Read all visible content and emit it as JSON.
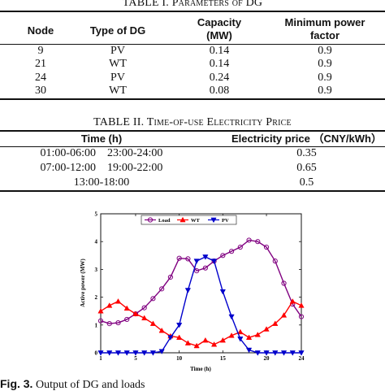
{
  "table1": {
    "title": "TABLE I. Parameters of DG",
    "headers": {
      "node": "Node",
      "type": "Type of DG",
      "capacity_l1": "Capacity",
      "capacity_l2": "(MW)",
      "mpf_l1": "Minimum power",
      "mpf_l2": "factor"
    },
    "rows": [
      {
        "node": "9",
        "type": "PV",
        "capacity": "0.14",
        "mpf": "0.9"
      },
      {
        "node": "21",
        "type": "WT",
        "capacity": "0.14",
        "mpf": "0.9"
      },
      {
        "node": "24",
        "type": "PV",
        "capacity": "0.24",
        "mpf": "0.9"
      },
      {
        "node": "30",
        "type": "WT",
        "capacity": "0.08",
        "mpf": "0.9"
      }
    ]
  },
  "table2": {
    "title": "TABLE II. Time-of-use Electricity Price",
    "headers": {
      "time": "Time (h)",
      "price": "Electricity price （CNY/kWh）"
    },
    "rows": [
      {
        "time": "01:00-06:00    23:00-24:00",
        "price": "0.35"
      },
      {
        "time": "07:00-12:00    19:00-22:00",
        "price": "0.65"
      },
      {
        "time": "13:00-18:00",
        "price": "0.5"
      }
    ]
  },
  "chart_data": {
    "type": "line",
    "xlabel": "Time (h)",
    "ylabel": "Active power (MW)",
    "xlim": [
      1,
      24
    ],
    "ylim": [
      0,
      5
    ],
    "xticks": [
      1,
      5,
      10,
      15,
      20,
      24
    ],
    "yticks": [
      0,
      1,
      2,
      3,
      4,
      5
    ],
    "grid": false,
    "legend_position": "top-center",
    "x": [
      1,
      2,
      3,
      4,
      5,
      6,
      7,
      8,
      9,
      10,
      11,
      12,
      13,
      14,
      15,
      16,
      17,
      18,
      19,
      20,
      21,
      22,
      23,
      24
    ],
    "series": [
      {
        "name": "Load",
        "color": "#800080",
        "marker": "circle",
        "values": [
          1.15,
          1.05,
          1.08,
          1.2,
          1.4,
          1.62,
          1.95,
          2.3,
          2.72,
          3.4,
          3.38,
          2.95,
          3.05,
          3.3,
          3.5,
          3.65,
          3.8,
          4.05,
          4.0,
          3.8,
          3.3,
          2.5,
          1.75,
          1.3
        ]
      },
      {
        "name": "WT",
        "color": "#ff0000",
        "marker": "triangle-up",
        "values": [
          1.5,
          1.7,
          1.85,
          1.6,
          1.4,
          1.25,
          1.05,
          0.8,
          0.6,
          0.55,
          0.35,
          0.25,
          0.45,
          0.3,
          0.45,
          0.62,
          0.75,
          0.55,
          0.65,
          0.85,
          1.05,
          1.35,
          1.85,
          1.7
        ]
      },
      {
        "name": "PV",
        "color": "#0000cc",
        "marker": "triangle-down",
        "values": [
          0,
          0,
          0,
          0,
          0,
          0,
          0,
          0.05,
          0.55,
          1.0,
          2.25,
          3.3,
          3.45,
          3.3,
          2.2,
          1.3,
          0.5,
          0.1,
          0,
          0,
          0,
          0,
          0,
          0
        ]
      }
    ]
  },
  "caption": {
    "label": "Fig. 3.",
    "text": " Output of DG and loads"
  }
}
